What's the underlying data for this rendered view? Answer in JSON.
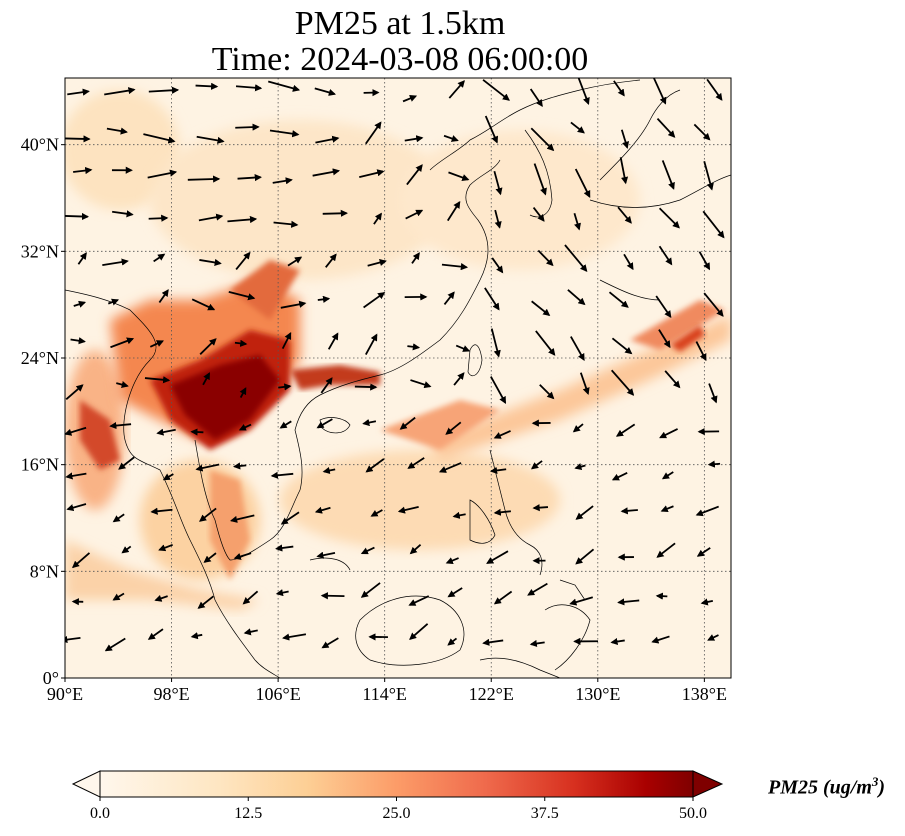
{
  "title": {
    "line1": "PM25 at 1.5km",
    "line2": "Time: 2024-03-08 06:00:00"
  },
  "map": {
    "lon_range": [
      90,
      140
    ],
    "lat_range": [
      0,
      45
    ],
    "lon_ticks": [
      {
        "value": 90,
        "label": "90°E"
      },
      {
        "value": 98,
        "label": "98°E"
      },
      {
        "value": 106,
        "label": "106°E"
      },
      {
        "value": 114,
        "label": "114°E"
      },
      {
        "value": 122,
        "label": "122°E"
      },
      {
        "value": 130,
        "label": "130°E"
      },
      {
        "value": 138,
        "label": "138°E"
      }
    ],
    "lat_ticks": [
      {
        "value": 0,
        "label": "0°"
      },
      {
        "value": 8,
        "label": "8°N"
      },
      {
        "value": 16,
        "label": "16°N"
      },
      {
        "value": 24,
        "label": "24°N"
      },
      {
        "value": 32,
        "label": "32°N"
      },
      {
        "value": 40,
        "label": "40°N"
      }
    ],
    "gridlines": "dotted",
    "field": "PM25",
    "vectors": "wind arrows"
  },
  "colorbar": {
    "min": 0.0,
    "max": 50.0,
    "tick_labels": [
      "0.0",
      "12.5",
      "25.0",
      "37.5",
      "50.0"
    ],
    "colormap": "OrRd",
    "label_main": "PM25 (ug/m",
    "label_sup": "3",
    "label_end": ")"
  },
  "colors": {
    "background": "#fef4e6",
    "low": "#fff7ec",
    "mid": "#fc8d59",
    "high": "#7f0000",
    "arrow": "#000000",
    "coast": "#000000"
  }
}
